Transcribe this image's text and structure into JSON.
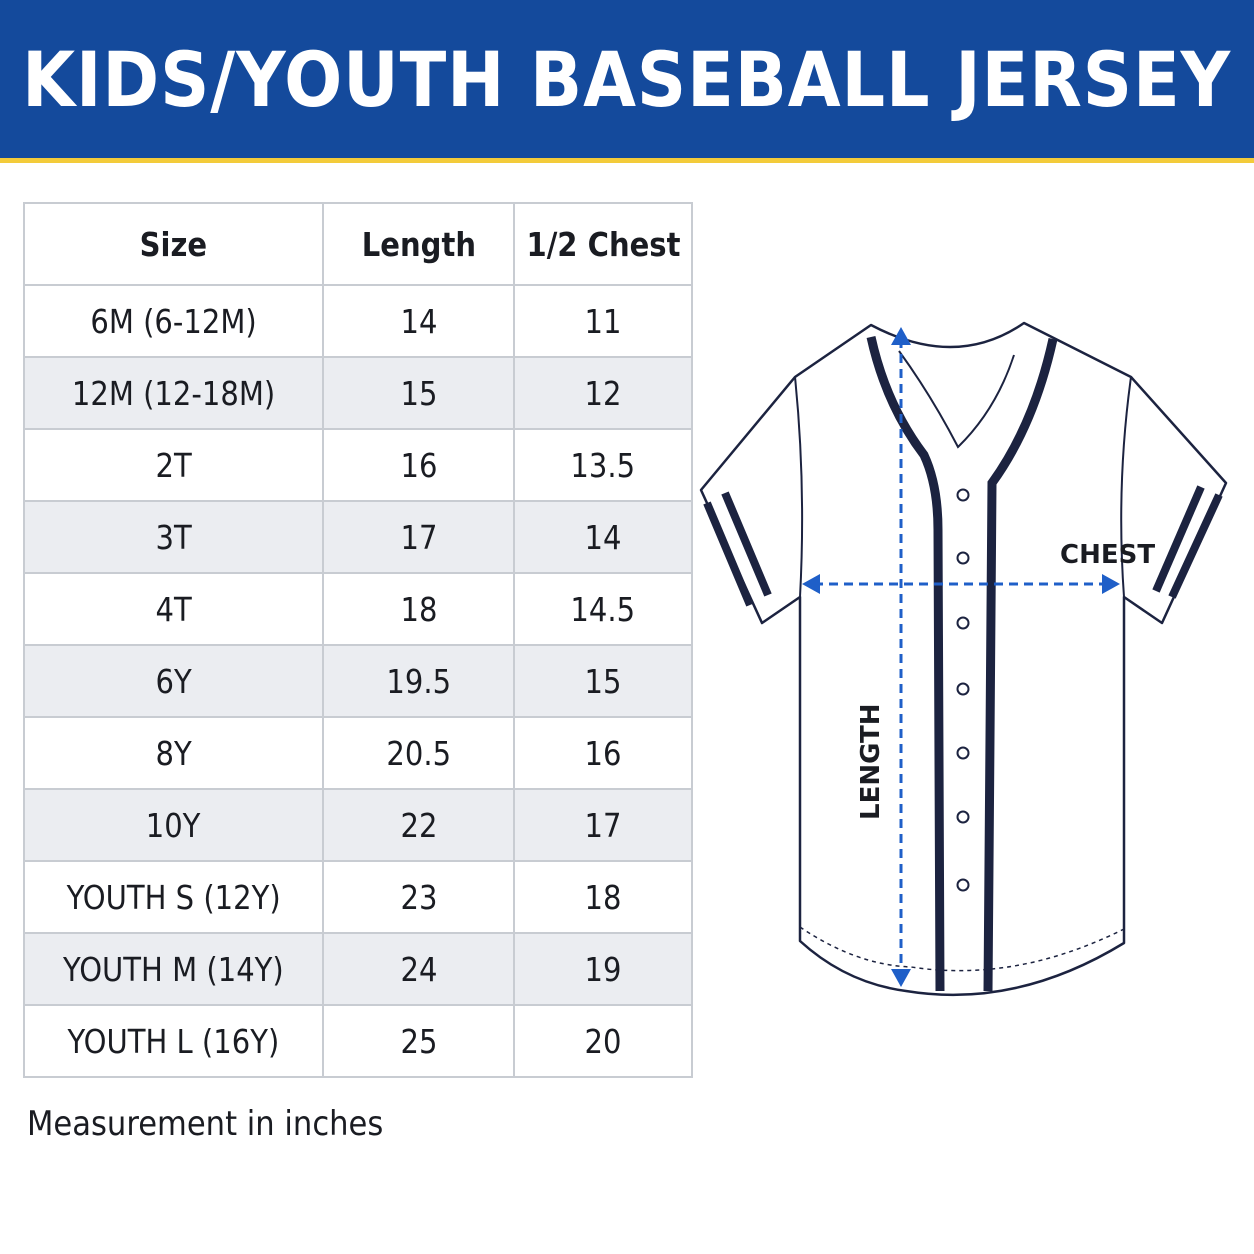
{
  "header": {
    "title": "KIDS/YOUTH BASEBALL JERSEY"
  },
  "table": {
    "columns": [
      "Size",
      "Length",
      "1/2 Chest"
    ],
    "rows": [
      {
        "size": "6M (6-12M)",
        "length": "14",
        "chest": "11"
      },
      {
        "size": "12M (12-18M)",
        "length": "15",
        "chest": "12"
      },
      {
        "size": "2T",
        "length": "16",
        "chest": "13.5"
      },
      {
        "size": "3T",
        "length": "17",
        "chest": "14"
      },
      {
        "size": "4T",
        "length": "18",
        "chest": "14.5"
      },
      {
        "size": "6Y",
        "length": "19.5",
        "chest": "15"
      },
      {
        "size": "8Y",
        "length": "20.5",
        "chest": "16"
      },
      {
        "size": "10Y",
        "length": "22",
        "chest": "17"
      },
      {
        "size": "YOUTH S (12Y)",
        "length": "23",
        "chest": "18"
      },
      {
        "size": "YOUTH M (14Y)",
        "length": "24",
        "chest": "19"
      },
      {
        "size": "YOUTH L (16Y)",
        "length": "25",
        "chest": "20"
      }
    ]
  },
  "note": "Measurement in inches",
  "diagram": {
    "chest_label": "CHEST",
    "length_label": "LENGTH"
  },
  "colors": {
    "header_bg": "#144a9c",
    "header_accent": "#f3cb3a",
    "arrow": "#1f5fc8",
    "jersey_outline": "#1c2340"
  }
}
